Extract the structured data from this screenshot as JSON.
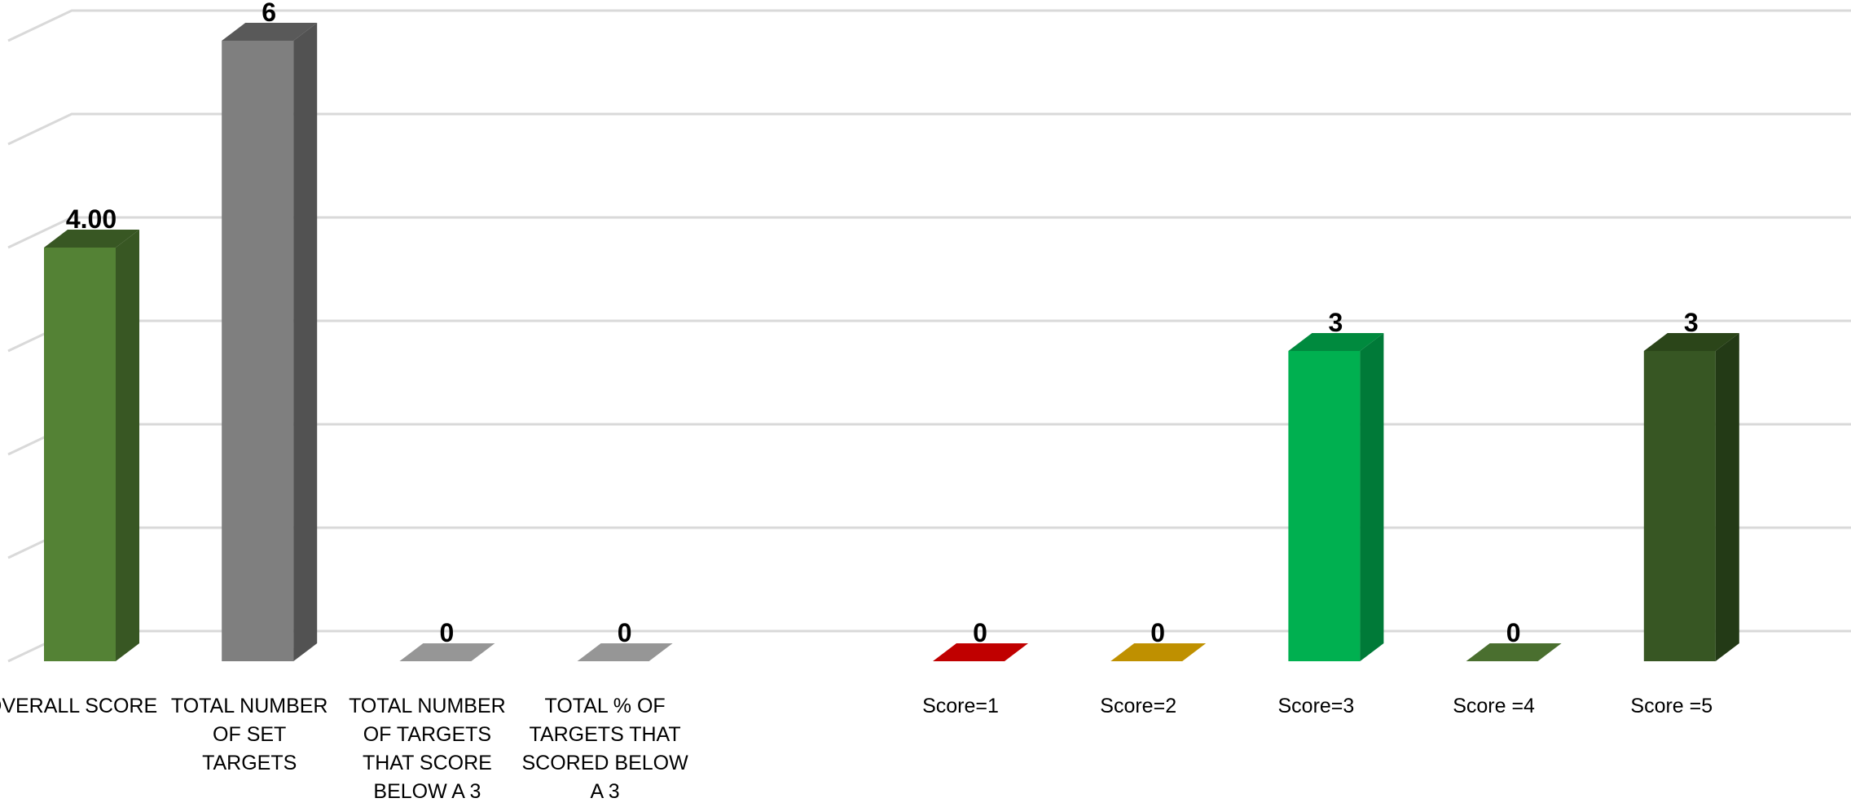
{
  "chart_data": {
    "type": "bar",
    "title": "",
    "xlabel": "",
    "ylabel": "",
    "ylim": [
      0,
      6
    ],
    "grid": true,
    "three_d": true,
    "bars": [
      {
        "category": "OVERALL SCORE",
        "category_lines": [
          "OVERALL SCORE"
        ],
        "value": 4.0,
        "label": "4.00",
        "color": "#548235",
        "side_color": "#385723",
        "top_color": "#385723"
      },
      {
        "category": "TOTAL NUMBER OF SET TARGETS",
        "category_lines": [
          "TOTAL NUMBER",
          "OF SET",
          "TARGETS"
        ],
        "value": 6,
        "label": "6",
        "color": "#7f7f7f",
        "side_color": "#525252",
        "top_color": "#595959"
      },
      {
        "category": "TOTAL NUMBER OF TARGETS THAT SCORE BELOW A 3",
        "category_lines": [
          "TOTAL NUMBER",
          "OF TARGETS",
          "THAT SCORE",
          "BELOW A 3"
        ],
        "value": 0,
        "label": "0",
        "color": "#7f7f7f",
        "side_color": "#525252",
        "top_color": "#969696"
      },
      {
        "category": "TOTAL % OF TARGETS THAT SCORED BELOW A 3",
        "category_lines": [
          "TOTAL % OF",
          "TARGETS THAT",
          "SCORED BELOW",
          "A 3"
        ],
        "value": 0,
        "label": "0",
        "color": "#7f7f7f",
        "side_color": "#525252",
        "top_color": "#969696"
      },
      {
        "category": "",
        "category_lines": [],
        "value": null,
        "label": "",
        "color": "",
        "side_color": "",
        "top_color": ""
      },
      {
        "category": "Score=1",
        "category_lines": [
          "Score=1"
        ],
        "value": 0,
        "label": "0",
        "color": "#c00000",
        "side_color": "#8b0000",
        "top_color": "#c00000"
      },
      {
        "category": "Score=2",
        "category_lines": [
          "Score=2"
        ],
        "value": 0,
        "label": "0",
        "color": "#bf9000",
        "side_color": "#8c6a00",
        "top_color": "#bf9000"
      },
      {
        "category": "Score=3",
        "category_lines": [
          "Score=3"
        ],
        "value": 3,
        "label": "3",
        "color": "#00b050",
        "side_color": "#007a38",
        "top_color": "#008a3e"
      },
      {
        "category": "Score =4",
        "category_lines": [
          "Score =4"
        ],
        "value": 0,
        "label": "0",
        "color": "#3f6527",
        "side_color": "#2c4a1b",
        "top_color": "#4a6f2f"
      },
      {
        "category": "Score =5",
        "category_lines": [
          "Score =5"
        ],
        "value": 3,
        "label": "3",
        "color": "#375623",
        "side_color": "#233a16",
        "top_color": "#2b4519"
      }
    ]
  }
}
